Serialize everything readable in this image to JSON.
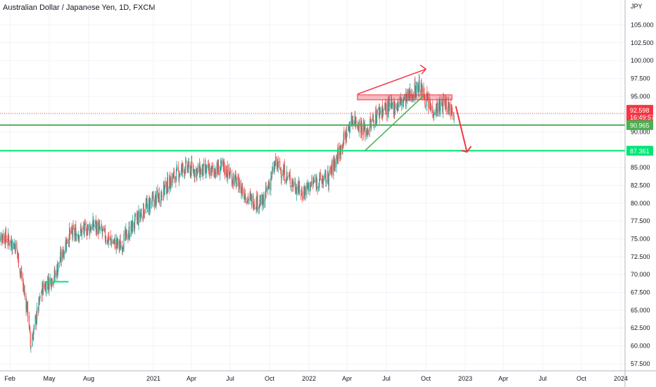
{
  "header": {
    "title": "Australian Dollar / Japanese Yen, 1D, FXCM"
  },
  "axis": {
    "currency": "JPY"
  },
  "price_tags": {
    "last_price": "92.598",
    "countdown": "16:49:57",
    "support_upper": "90.965",
    "support_lower": "87.361"
  },
  "colors": {
    "up": "#26a69a",
    "down": "#ef5350",
    "background": "#ffffff",
    "grid": "#f0f3fa",
    "green_line": "#4caf50",
    "bright_green": "#00e676",
    "annotation_red": "#f23645"
  },
  "chart_data": {
    "type": "candlestick",
    "symbol": "AUDJPY",
    "timeframe": "1D",
    "source": "FXCM",
    "ylim": [
      56.5,
      108.5
    ],
    "yticks": [
      "57.500",
      "60.000",
      "62.500",
      "65.000",
      "67.500",
      "70.000",
      "72.500",
      "75.000",
      "77.500",
      "80.000",
      "82.500",
      "85.000",
      "87.500",
      "90.000",
      "92.500",
      "95.000",
      "97.500",
      "100.000",
      "102.500",
      "105.000"
    ],
    "xticks": [
      "Feb",
      "May",
      "Aug",
      "2021",
      "Apr",
      "Jul",
      "Oct",
      "2022",
      "Apr",
      "Jul",
      "Oct",
      "2023",
      "Apr",
      "Jul",
      "Oct",
      "2024"
    ],
    "approx_close_path": [
      {
        "t": "2020-01",
        "close": 75.5
      },
      {
        "t": "2020-02",
        "close": 74.0
      },
      {
        "t": "2020-03",
        "close": 64.0
      },
      {
        "t": "2020-03-19",
        "close": 60.0
      },
      {
        "t": "2020-04",
        "close": 68.0
      },
      {
        "t": "2020-05",
        "close": 70.0
      },
      {
        "t": "2020-06",
        "close": 75.5
      },
      {
        "t": "2020-07",
        "close": 76.0
      },
      {
        "t": "2020-08",
        "close": 77.0
      },
      {
        "t": "2020-09",
        "close": 75.0
      },
      {
        "t": "2020-10",
        "close": 74.0
      },
      {
        "t": "2020-11",
        "close": 77.0
      },
      {
        "t": "2020-12",
        "close": 79.5
      },
      {
        "t": "2021-01",
        "close": 81.0
      },
      {
        "t": "2021-02",
        "close": 83.5
      },
      {
        "t": "2021-03",
        "close": 85.0
      },
      {
        "t": "2021-04",
        "close": 84.5
      },
      {
        "t": "2021-05",
        "close": 84.5
      },
      {
        "t": "2021-06",
        "close": 85.0
      },
      {
        "t": "2021-07",
        "close": 83.0
      },
      {
        "t": "2021-08",
        "close": 80.5
      },
      {
        "t": "2021-09",
        "close": 80.0
      },
      {
        "t": "2021-10",
        "close": 85.5
      },
      {
        "t": "2021-11",
        "close": 83.5
      },
      {
        "t": "2021-12",
        "close": 81.5
      },
      {
        "t": "2022-01",
        "close": 83.0
      },
      {
        "t": "2022-02",
        "close": 83.5
      },
      {
        "t": "2022-03",
        "close": 87.5
      },
      {
        "t": "2022-04",
        "close": 92.0
      },
      {
        "t": "2022-05",
        "close": 90.0
      },
      {
        "t": "2022-06",
        "close": 93.0
      },
      {
        "t": "2022-07",
        "close": 93.5
      },
      {
        "t": "2022-08",
        "close": 94.5
      },
      {
        "t": "2022-09",
        "close": 96.5
      },
      {
        "t": "2022-10",
        "close": 93.0
      },
      {
        "t": "2022-11",
        "close": 94.0
      },
      {
        "t": "2022-12",
        "close": 92.6
      }
    ],
    "horizontal_levels": [
      {
        "price": 90.965,
        "label": "90.965",
        "color": "#4caf50"
      },
      {
        "price": 87.361,
        "label": "87.361",
        "color": "#00e676"
      }
    ],
    "annotations": [
      {
        "type": "resistance-zone",
        "price_low": 94.5,
        "price_high": 95.2,
        "color": "#f23645"
      },
      {
        "type": "rising-trendline",
        "color": "#4caf50"
      },
      {
        "type": "broadening-arrow",
        "color": "#f23645"
      },
      {
        "type": "down-arrow",
        "target": 87.361,
        "color": "#f23645"
      },
      {
        "type": "short-support-line",
        "price": 69.0,
        "color": "#00e676"
      }
    ],
    "last_price": 92.598
  }
}
